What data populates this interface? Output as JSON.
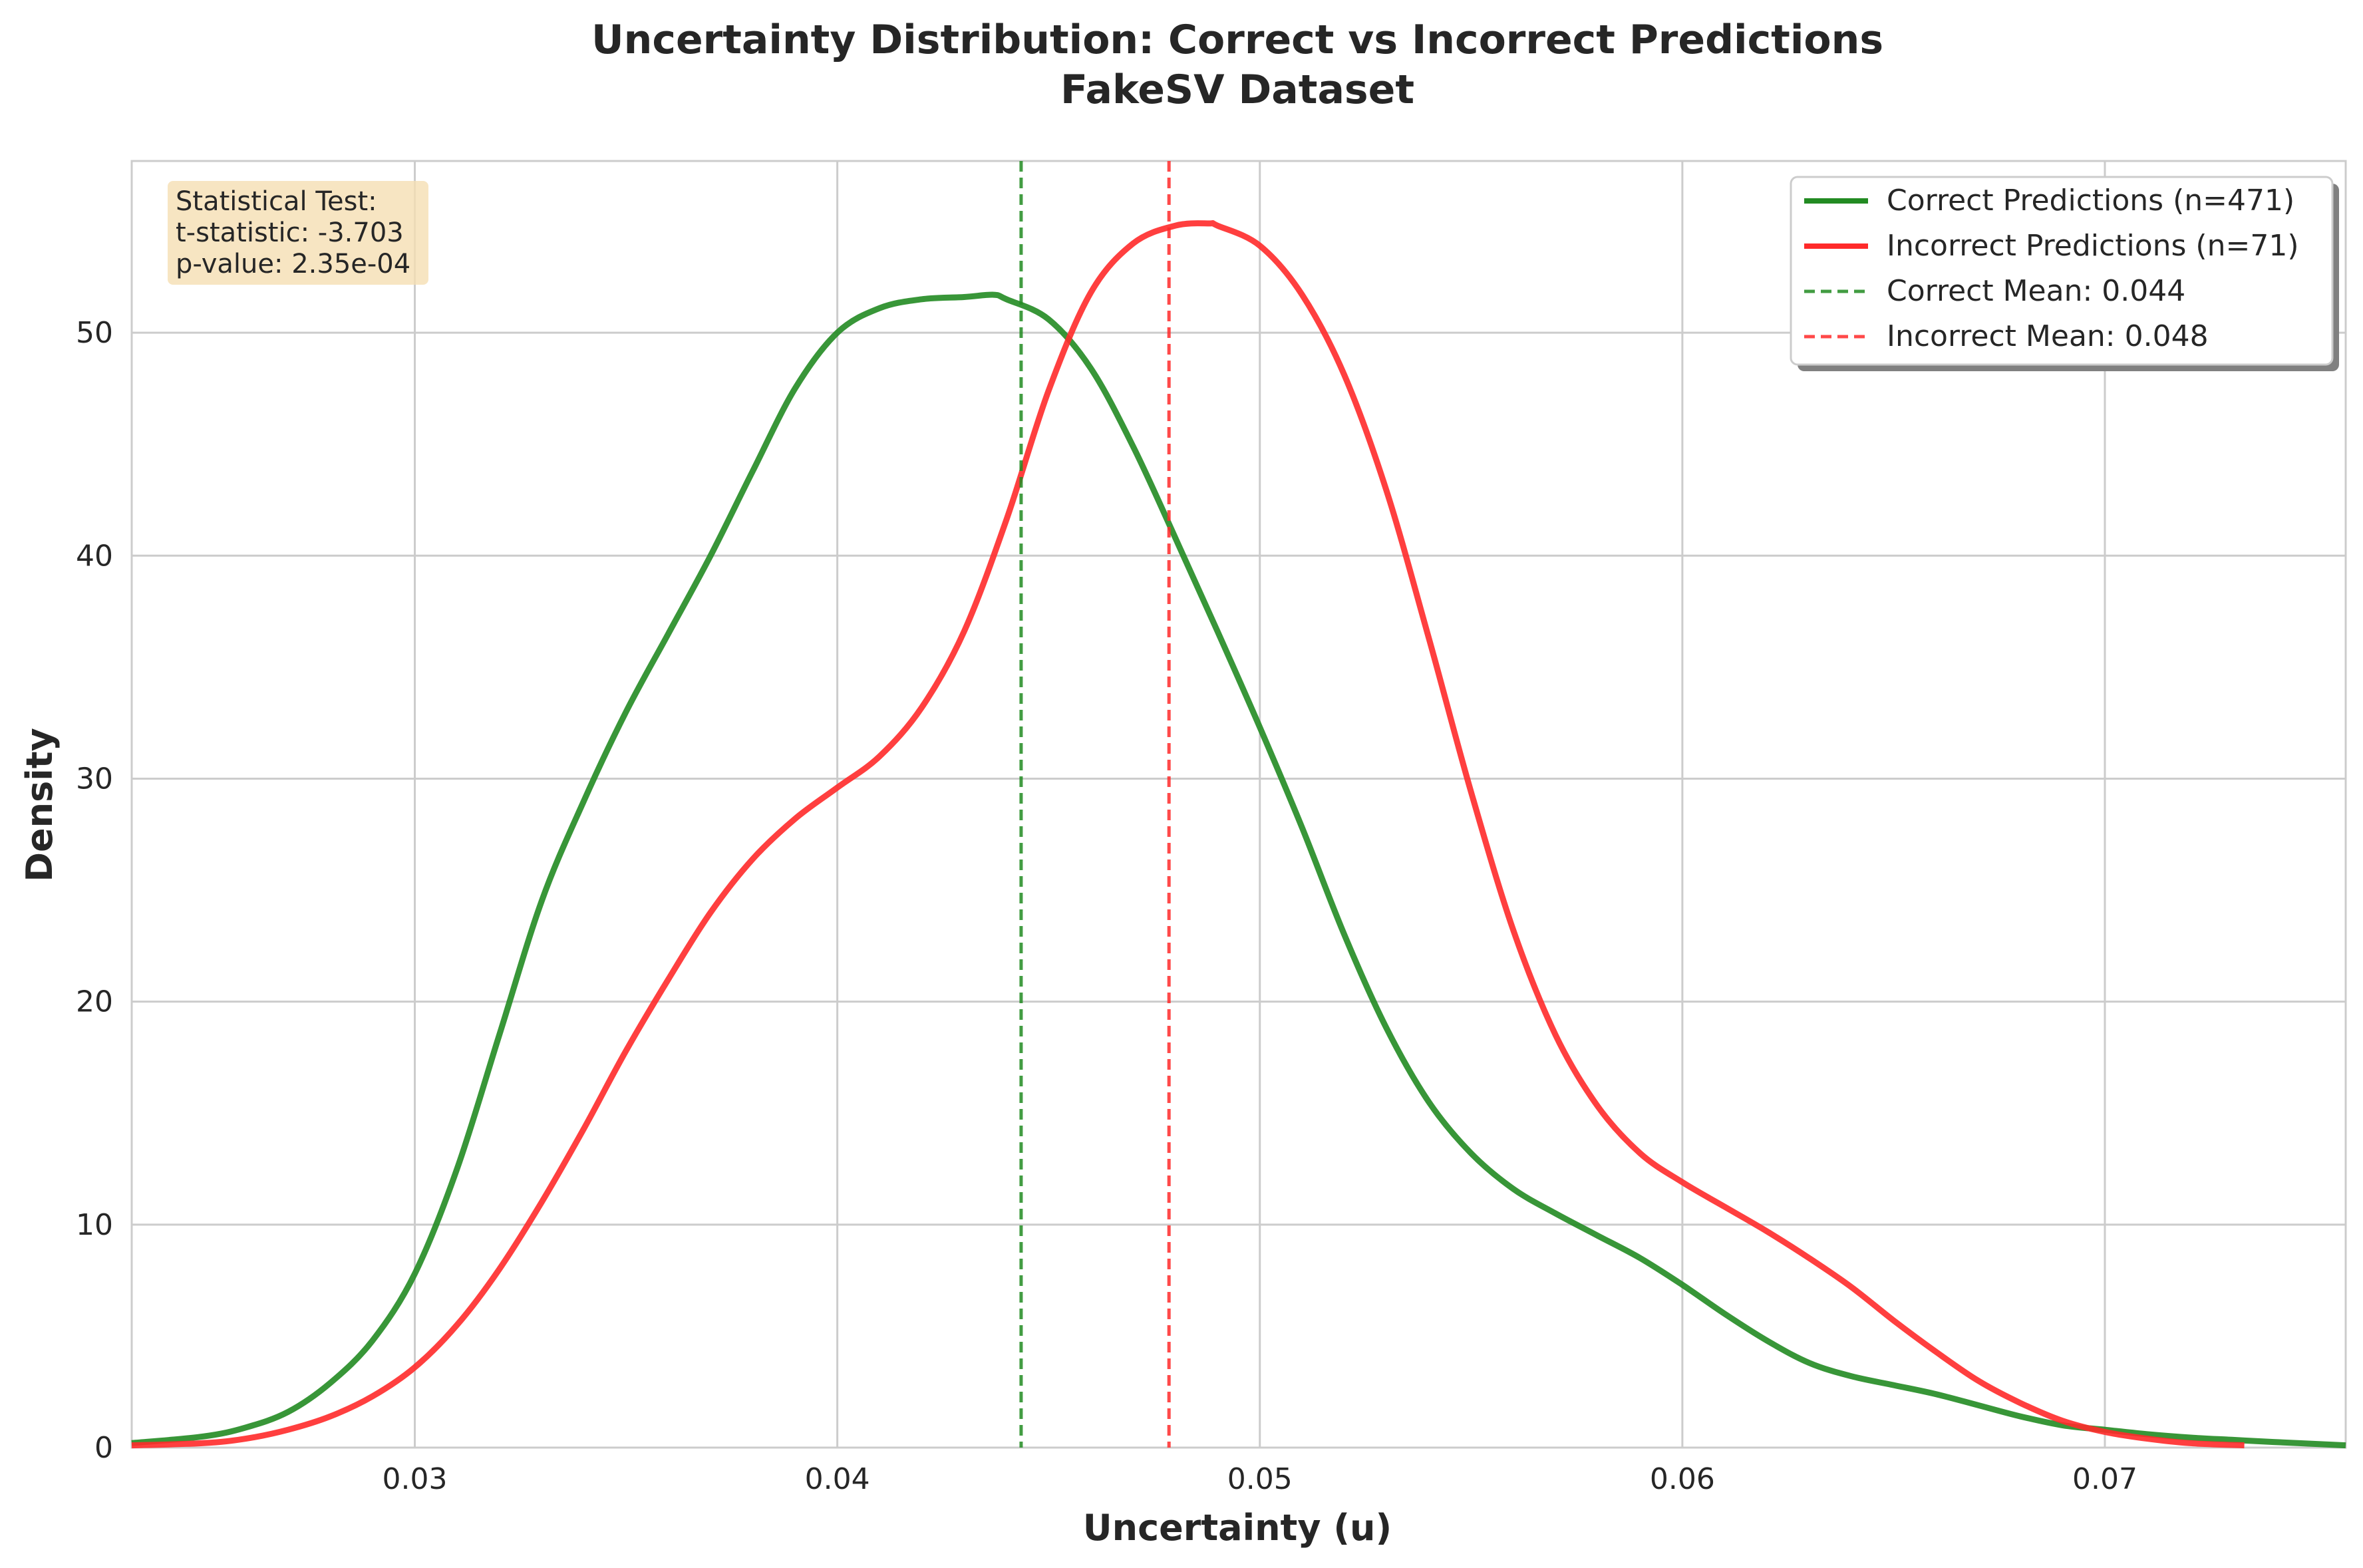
{
  "chart_data": {
    "type": "line",
    "title_line1": "Uncertainty Distribution: Correct vs Incorrect Predictions",
    "title_line2": "FakeSV Dataset",
    "xlabel": "Uncertainty (u)",
    "ylabel": "Density",
    "xlim": [
      0.0233,
      0.0757
    ],
    "ylim": [
      0,
      57.7
    ],
    "xticks": [
      0.03,
      0.04,
      0.05,
      0.06,
      0.07
    ],
    "xtick_labels": [
      "0.03",
      "0.04",
      "0.05",
      "0.06",
      "0.07"
    ],
    "yticks": [
      0,
      10,
      20,
      30,
      40,
      50
    ],
    "ytick_labels": [
      "0",
      "10",
      "20",
      "30",
      "40",
      "50"
    ],
    "grid": true,
    "legend_position": "top-right",
    "series": [
      {
        "name": "Correct Predictions (n=471)",
        "color": "#228B22",
        "x": [
          0.0233,
          0.025,
          0.026,
          0.027,
          0.028,
          0.029,
          0.03,
          0.031,
          0.032,
          0.033,
          0.034,
          0.035,
          0.036,
          0.037,
          0.038,
          0.039,
          0.04,
          0.041,
          0.042,
          0.043,
          0.0437,
          0.044,
          0.045,
          0.046,
          0.047,
          0.048,
          0.049,
          0.05,
          0.051,
          0.052,
          0.053,
          0.054,
          0.055,
          0.056,
          0.057,
          0.058,
          0.059,
          0.06,
          0.061,
          0.062,
          0.063,
          0.064,
          0.065,
          0.066,
          0.067,
          0.068,
          0.069,
          0.07,
          0.071,
          0.072,
          0.073,
          0.074,
          0.0757
        ],
        "y": [
          0.2,
          0.5,
          0.9,
          1.6,
          2.9,
          4.8,
          7.8,
          12.5,
          18.5,
          24.5,
          29.0,
          33.0,
          36.5,
          40.0,
          43.8,
          47.5,
          50.0,
          51.1,
          51.5,
          51.6,
          51.7,
          51.5,
          50.6,
          48.4,
          44.9,
          40.8,
          36.6,
          32.3,
          27.8,
          23.0,
          18.8,
          15.5,
          13.2,
          11.6,
          10.5,
          9.5,
          8.5,
          7.3,
          6.0,
          4.8,
          3.8,
          3.2,
          2.8,
          2.4,
          1.9,
          1.4,
          1.0,
          0.8,
          0.6,
          0.45,
          0.35,
          0.25,
          0.1
        ]
      },
      {
        "name": "Incorrect Predictions (n=71)",
        "color": "#FF2A2A",
        "x": [
          0.0233,
          0.025,
          0.026,
          0.027,
          0.028,
          0.029,
          0.03,
          0.031,
          0.032,
          0.033,
          0.034,
          0.035,
          0.036,
          0.037,
          0.038,
          0.039,
          0.04,
          0.041,
          0.042,
          0.043,
          0.044,
          0.045,
          0.046,
          0.047,
          0.048,
          0.0488,
          0.049,
          0.05,
          0.051,
          0.052,
          0.053,
          0.054,
          0.055,
          0.056,
          0.057,
          0.058,
          0.059,
          0.06,
          0.061,
          0.062,
          0.063,
          0.064,
          0.065,
          0.066,
          0.067,
          0.068,
          0.069,
          0.07,
          0.071,
          0.072,
          0.0733
        ],
        "y": [
          0.1,
          0.2,
          0.4,
          0.8,
          1.4,
          2.3,
          3.6,
          5.5,
          8.0,
          11.0,
          14.3,
          17.8,
          21.0,
          24.0,
          26.4,
          28.2,
          29.6,
          31.0,
          33.2,
          36.6,
          41.6,
          47.4,
          51.8,
          54.0,
          54.8,
          54.9,
          54.8,
          53.9,
          51.7,
          48.1,
          42.9,
          36.3,
          29.4,
          23.2,
          18.5,
          15.3,
          13.2,
          11.9,
          10.8,
          9.7,
          8.5,
          7.2,
          5.7,
          4.3,
          3.0,
          2.0,
          1.2,
          0.7,
          0.4,
          0.2,
          0.1
        ]
      }
    ],
    "vlines": [
      {
        "name": "Correct Mean: 0.044",
        "value": 0.04435,
        "color": "#228B22"
      },
      {
        "name": "Incorrect Mean: 0.048",
        "value": 0.04785,
        "color": "#FF2A2A"
      }
    ],
    "stat_box": {
      "line1": "Statistical Test:",
      "line2": "t-statistic: -3.703",
      "line3": "p-value: 2.35e-04",
      "background": "#F5DEB3"
    }
  }
}
